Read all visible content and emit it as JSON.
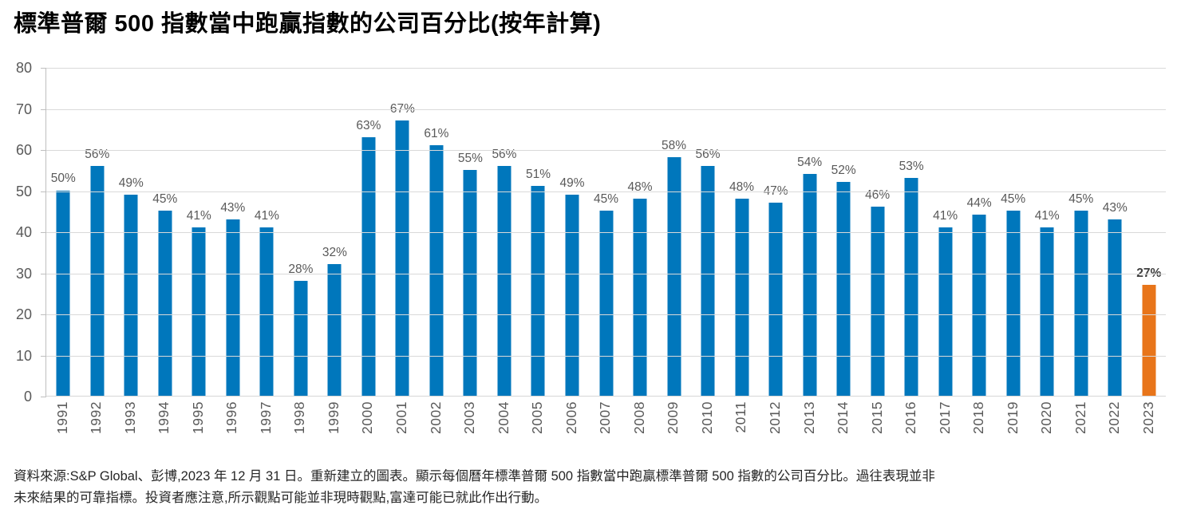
{
  "title": "標準普爾 500 指數當中跑贏指數的公司百分比(按年計算)",
  "chart_data": {
    "type": "bar",
    "title": "標準普爾 500 指數當中跑贏指數的公司百分比(按年計算)",
    "categories": [
      "1991",
      "1992",
      "1993",
      "1994",
      "1995",
      "1996",
      "1997",
      "1998",
      "1999",
      "2000",
      "2001",
      "2002",
      "2003",
      "2004",
      "2005",
      "2006",
      "2007",
      "2008",
      "2009",
      "2010",
      "2011",
      "2012",
      "2013",
      "2014",
      "2015",
      "2016",
      "2017",
      "2018",
      "2019",
      "2020",
      "2021",
      "2022",
      "2023"
    ],
    "values": [
      50,
      56,
      49,
      45,
      41,
      43,
      41,
      28,
      32,
      63,
      67,
      61,
      55,
      56,
      51,
      49,
      45,
      48,
      58,
      56,
      48,
      47,
      54,
      52,
      46,
      53,
      41,
      44,
      45,
      41,
      45,
      43,
      27
    ],
    "bar_labels": [
      "50%",
      "56%",
      "49%",
      "45%",
      "41%",
      "43%",
      "41%",
      "28%",
      "32%",
      "63%",
      "67%",
      "61%",
      "55%",
      "56%",
      "51%",
      "49%",
      "45%",
      "48%",
      "58%",
      "56%",
      "48%",
      "47%",
      "54%",
      "52%",
      "46%",
      "53%",
      "41%",
      "44%",
      "45%",
      "41%",
      "45%",
      "43%",
      "27%"
    ],
    "ylim": [
      0,
      80
    ],
    "yticks": [
      0,
      10,
      20,
      30,
      40,
      50,
      60,
      70,
      80
    ],
    "grid": true,
    "legend": "none",
    "xlabel": "",
    "ylabel": "",
    "bar_color": "#0077BC",
    "highlight_color": "#E8751A",
    "highlight_index": 32,
    "highlight_year": "2023",
    "axis_text_color": "#595959"
  },
  "footer": {
    "lines": [
      "資料來源:S&P Global、彭博,2023 年 12 月 31 日。重新建立的圖表。顯示每個曆年標準普爾 500 指數當中跑贏標準普爾 500 指數的公司百分比。過往表現並非",
      "未來結果的可靠指標。投資者應注意,所示觀點可能並非現時觀點,富達可能已就此作出行動。"
    ]
  }
}
